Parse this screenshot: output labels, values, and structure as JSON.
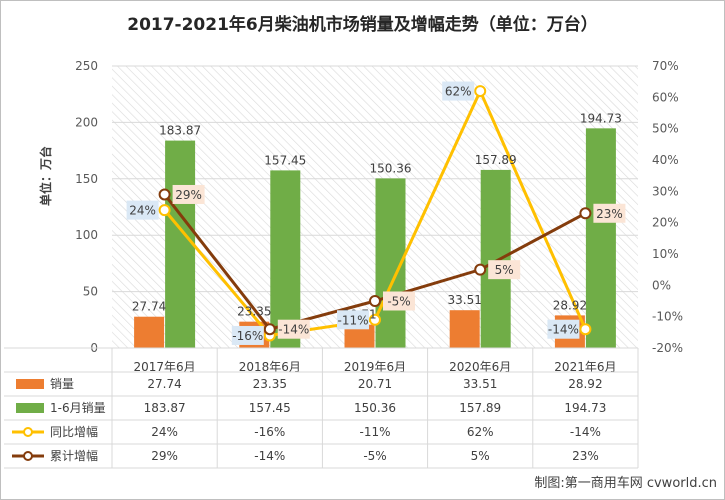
{
  "chart_data": {
    "type": "bar",
    "title": "2017-2021年6月柴油机市场销量及增幅走势（单位：万台）",
    "ylabel": "单位：万台",
    "categories": [
      "2017年6月",
      "2018年6月",
      "2019年6月",
      "2020年6月",
      "2021年6月"
    ],
    "ylim": [
      0,
      250
    ],
    "y_ticks": [
      "0",
      "50",
      "100",
      "150",
      "200",
      "250"
    ],
    "y2lim": [
      -20,
      70
    ],
    "y2_ticks": [
      "-20%",
      "-10%",
      "0%",
      "10%",
      "20%",
      "30%",
      "40%",
      "50%",
      "60%",
      "70%"
    ],
    "series": [
      {
        "name": "销量",
        "kind": "bar",
        "color": "#ed7d31",
        "values": [
          27.74,
          23.35,
          20.71,
          33.51,
          28.92
        ],
        "labels": [
          "27.74",
          "23.35",
          "20.71",
          "33.51",
          "28.92"
        ]
      },
      {
        "name": "1-6月销量",
        "kind": "bar",
        "color": "#70ad47",
        "values": [
          183.87,
          157.45,
          150.36,
          157.89,
          194.73
        ],
        "labels": [
          "183.87",
          "157.45",
          "150.36",
          "157.89",
          "194.73"
        ]
      },
      {
        "name": "同比增幅",
        "kind": "line",
        "axis": "right",
        "color": "#ffc000",
        "values": [
          24,
          -16,
          -11,
          62,
          -14
        ],
        "labels": [
          "24%",
          "-16%",
          "-11%",
          "62%",
          "-14%"
        ]
      },
      {
        "name": "累计增幅",
        "kind": "line",
        "axis": "right",
        "color": "#843c0c",
        "values": [
          29,
          -14,
          -5,
          5,
          23
        ],
        "labels": [
          "29%",
          "-14%",
          "-5%",
          "5%",
          "23%"
        ]
      }
    ],
    "grid": true,
    "legend": "data table below chart"
  },
  "credit": "制图:第一商用车网 cvworld.cn"
}
